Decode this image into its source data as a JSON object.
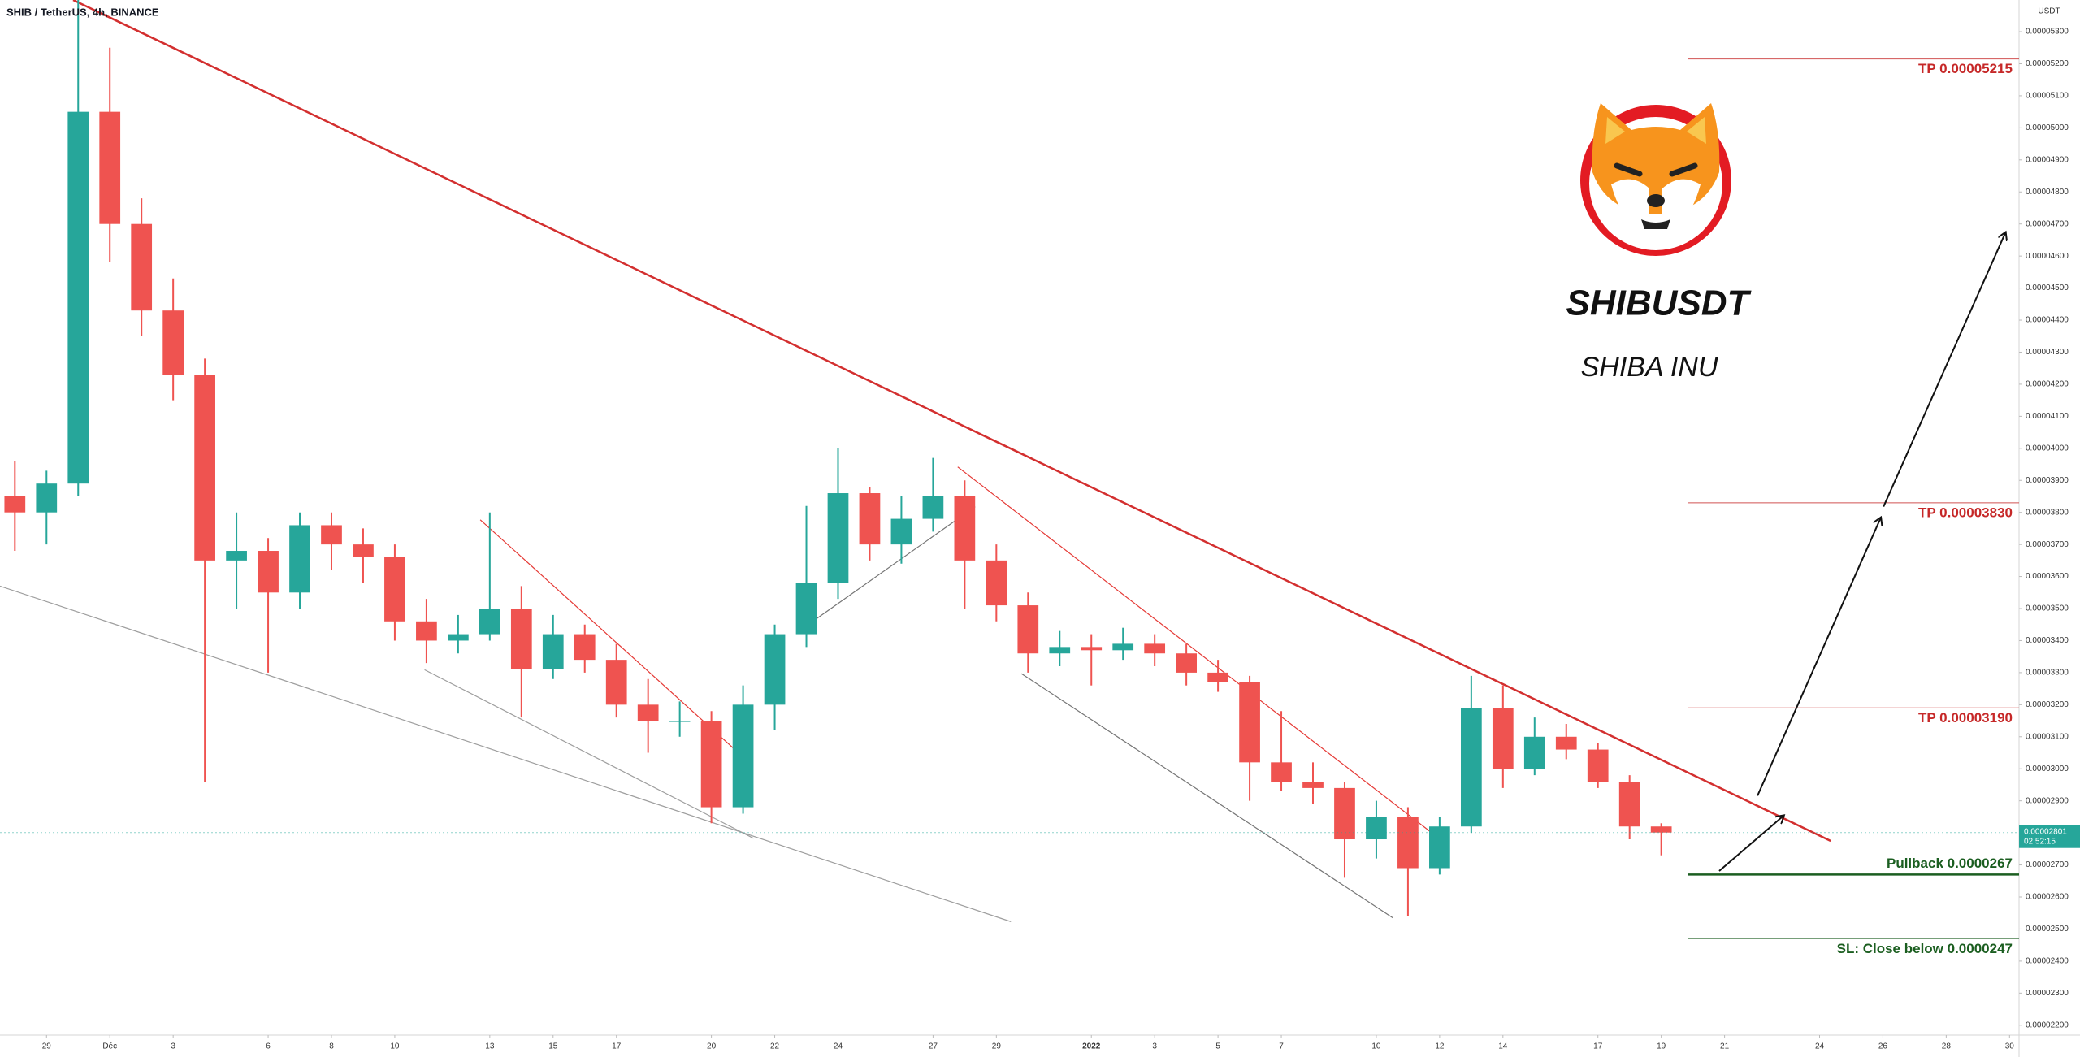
{
  "chart_data": {
    "type": "candlestick",
    "title": "SHIB / TetherUS, 4h, BINANCE",
    "currency": "USDT",
    "heading": "SHIBUSDT",
    "subheading": "SHIBA INU",
    "up_color": "#26a69a",
    "down_color": "#ef5350",
    "grid": false,
    "x": [
      28,
      29,
      30,
      31,
      32,
      33,
      34,
      35,
      36,
      37,
      38,
      39,
      40,
      41,
      42,
      43,
      44,
      45,
      46,
      47,
      48,
      49,
      50,
      51,
      52,
      53,
      54,
      55,
      56,
      57,
      58,
      59,
      60,
      61,
      62,
      63,
      64,
      65,
      66,
      67,
      68,
      69,
      70,
      71,
      72,
      73,
      74,
      75,
      76,
      77,
      78,
      79,
      80
    ],
    "open": [
      3.85e-05,
      3.8e-05,
      3.89e-05,
      5.05e-05,
      4.7e-05,
      4.43e-05,
      4.23e-05,
      3.65e-05,
      3.68e-05,
      3.55e-05,
      3.76e-05,
      3.7e-05,
      3.66e-05,
      3.46e-05,
      3.4e-05,
      3.42e-05,
      3.5e-05,
      3.31e-05,
      3.42e-05,
      3.34e-05,
      3.2e-05,
      3.15e-05,
      3.15e-05,
      2.88e-05,
      3.2e-05,
      3.42e-05,
      3.58e-05,
      3.86e-05,
      3.7e-05,
      3.78e-05,
      3.85e-05,
      3.65e-05,
      3.51e-05,
      3.36e-05,
      3.38e-05,
      3.37e-05,
      3.39e-05,
      3.36e-05,
      3.3e-05,
      3.27e-05,
      3.02e-05,
      2.96e-05,
      2.94e-05,
      2.78e-05,
      2.85e-05,
      2.69e-05,
      2.82e-05,
      3.19e-05,
      3e-05,
      3.1e-05,
      3.06e-05,
      2.96e-05,
      2.82e-05
    ],
    "high": [
      3.96e-05,
      3.93e-05,
      5.4e-05,
      5.25e-05,
      4.78e-05,
      4.53e-05,
      4.28e-05,
      3.8e-05,
      3.72e-05,
      3.8e-05,
      3.8e-05,
      3.75e-05,
      3.7e-05,
      3.53e-05,
      3.48e-05,
      3.8e-05,
      3.57e-05,
      3.48e-05,
      3.45e-05,
      3.39e-05,
      3.28e-05,
      3.21e-05,
      3.18e-05,
      3.26e-05,
      3.45e-05,
      3.82e-05,
      4e-05,
      3.88e-05,
      3.85e-05,
      3.97e-05,
      3.9e-05,
      3.7e-05,
      3.55e-05,
      3.43e-05,
      3.42e-05,
      3.44e-05,
      3.42e-05,
      3.39e-05,
      3.34e-05,
      3.29e-05,
      3.18e-05,
      3.02e-05,
      2.96e-05,
      2.9e-05,
      2.88e-05,
      2.85e-05,
      3.29e-05,
      3.26e-05,
      3.16e-05,
      3.14e-05,
      3.08e-05,
      2.98e-05,
      2.83e-05
    ],
    "low": [
      3.68e-05,
      3.7e-05,
      3.85e-05,
      4.58e-05,
      4.35e-05,
      4.15e-05,
      2.96e-05,
      3.5e-05,
      3.3e-05,
      3.5e-05,
      3.62e-05,
      3.58e-05,
      3.4e-05,
      3.33e-05,
      3.36e-05,
      3.4e-05,
      3.16e-05,
      3.28e-05,
      3.3e-05,
      3.16e-05,
      3.05e-05,
      3.1e-05,
      2.83e-05,
      2.86e-05,
      3.12e-05,
      3.38e-05,
      3.53e-05,
      3.65e-05,
      3.64e-05,
      3.74e-05,
      3.5e-05,
      3.46e-05,
      3.3e-05,
      3.32e-05,
      3.26e-05,
      3.34e-05,
      3.32e-05,
      3.26e-05,
      3.24e-05,
      2.9e-05,
      2.93e-05,
      2.89e-05,
      2.66e-05,
      2.72e-05,
      2.54e-05,
      2.67e-05,
      2.8e-05,
      2.94e-05,
      2.98e-05,
      3.03e-05,
      2.94e-05,
      2.78e-05,
      2.73e-05
    ],
    "close": [
      3.8e-05,
      3.89e-05,
      5.05e-05,
      4.7e-05,
      4.43e-05,
      4.23e-05,
      3.65e-05,
      3.68e-05,
      3.55e-05,
      3.76e-05,
      3.7e-05,
      3.66e-05,
      3.46e-05,
      3.4e-05,
      3.42e-05,
      3.5e-05,
      3.31e-05,
      3.42e-05,
      3.34e-05,
      3.2e-05,
      3.15e-05,
      3.15e-05,
      2.88e-05,
      3.2e-05,
      3.42e-05,
      3.58e-05,
      3.86e-05,
      3.7e-05,
      3.78e-05,
      3.85e-05,
      3.65e-05,
      3.51e-05,
      3.36e-05,
      3.38e-05,
      3.37e-05,
      3.39e-05,
      3.36e-05,
      3.3e-05,
      3.27e-05,
      3.02e-05,
      2.96e-05,
      2.94e-05,
      2.78e-05,
      2.85e-05,
      2.69e-05,
      2.82e-05,
      3.19e-05,
      3e-05,
      3.1e-05,
      3.06e-05,
      2.96e-05,
      2.82e-05,
      2.801e-05
    ],
    "last_price_label": "0.00002801",
    "countdown": "02:52:15",
    "xlim": [
      27.53,
      91.3
    ],
    "ylim": [
      2.169e-05,
      5.399e-05
    ],
    "xticks": [
      29,
      {
        "value": 31,
        "label": "Déc"
      },
      {
        "value": 33,
        "label": "3"
      },
      {
        "value": 36,
        "label": "6"
      },
      {
        "value": 38,
        "label": "8"
      },
      {
        "value": 40,
        "label": "10"
      },
      {
        "value": 43,
        "label": "13"
      },
      {
        "value": 45,
        "label": "15"
      },
      {
        "value": 47,
        "label": "17"
      },
      {
        "value": 50,
        "label": "20"
      },
      {
        "value": 52,
        "label": "22"
      },
      {
        "value": 54,
        "label": "24"
      },
      {
        "value": 57,
        "label": "27"
      },
      {
        "value": 59,
        "label": "29"
      },
      {
        "value": 62,
        "label": "2022"
      },
      {
        "value": 64,
        "label": "3"
      },
      {
        "value": 66,
        "label": "5"
      },
      {
        "value": 68,
        "label": "7"
      },
      {
        "value": 71,
        "label": "10"
      },
      {
        "value": 73,
        "label": "12"
      },
      {
        "value": 75,
        "label": "14"
      },
      {
        "value": 78,
        "label": "17"
      },
      {
        "value": 80,
        "label": "19"
      },
      {
        "value": 82,
        "label": "21"
      },
      {
        "value": 85,
        "label": "24"
      },
      {
        "value": 87,
        "label": "26"
      },
      {
        "value": 89,
        "label": "28"
      },
      {
        "value": 91,
        "label": "30"
      }
    ],
    "yticks": [
      {
        "value": 2.2e-05,
        "label": "0.00002200"
      },
      {
        "value": 2.3e-05,
        "label": "0.00002300"
      },
      {
        "value": 2.4e-05,
        "label": "0.00002400"
      },
      {
        "value": 2.5e-05,
        "label": "0.00002500"
      },
      {
        "value": 2.6e-05,
        "label": "0.00002600"
      },
      {
        "value": 2.7e-05,
        "label": "0.00002700"
      },
      {
        "value": 2.8e-05,
        "label": "0.00002800"
      },
      {
        "value": 2.9e-05,
        "label": "0.00002900"
      },
      {
        "value": 3e-05,
        "label": "0.00003000"
      },
      {
        "value": 3.1e-05,
        "label": "0.00003100"
      },
      {
        "value": 3.2e-05,
        "label": "0.00003200"
      },
      {
        "value": 3.3e-05,
        "label": "0.00003300"
      },
      {
        "value": 3.4e-05,
        "label": "0.00003400"
      },
      {
        "value": 3.5e-05,
        "label": "0.00003500"
      },
      {
        "value": 3.6e-05,
        "label": "0.00003600"
      },
      {
        "value": 3.7e-05,
        "label": "0.00003700"
      },
      {
        "value": 3.8e-05,
        "label": "0.00003800"
      },
      {
        "value": 3.9e-05,
        "label": "0.00003900"
      },
      {
        "value": 4e-05,
        "label": "0.00004000"
      },
      {
        "value": 4.1e-05,
        "label": "0.00004100"
      },
      {
        "value": 4.2e-05,
        "label": "0.00004200"
      },
      {
        "value": 4.3e-05,
        "label": "0.00004300"
      },
      {
        "value": 4.4e-05,
        "label": "0.00004400"
      },
      {
        "value": 4.5e-05,
        "label": "0.00004500"
      },
      {
        "value": 4.6e-05,
        "label": "0.00004600"
      },
      {
        "value": 4.7e-05,
        "label": "0.00004700"
      },
      {
        "value": 4.8e-05,
        "label": "0.00004800"
      },
      {
        "value": 4.9e-05,
        "label": "0.00004900"
      },
      {
        "value": 5e-05,
        "label": "0.00005000"
      },
      {
        "value": 5.1e-05,
        "label": "0.00005100"
      },
      {
        "value": 5.2e-05,
        "label": "0.00005200"
      },
      {
        "value": 5.3e-05,
        "label": "0.00005300"
      }
    ],
    "levels": [
      {
        "value": 5.215e-05,
        "label": "TP 0.00005215",
        "color": "#c62828"
      },
      {
        "value": 3.83e-05,
        "label": "TP 0.00003830",
        "color": "#c62828"
      },
      {
        "value": 3.19e-05,
        "label": "TP 0.00003190",
        "color": "#c62828"
      },
      {
        "value": 2.67e-05,
        "label": "Pullback 0.0000267",
        "color": "#1b5e20"
      },
      {
        "value": 2.47e-05,
        "label": "SL: Close below 0.0000247",
        "color": "#1b5e20"
      }
    ],
    "trendlines": [
      {
        "from": [
          29.84,
          5.399e-05
        ],
        "to": [
          85.35,
          2.775e-05
        ],
        "color": "#d32f2f"
      },
      {
        "from": [
          27.53,
          3.57e-05
        ],
        "to": [
          59.46,
          2.523e-05
        ],
        "color": "#9e9e9e"
      },
      {
        "from": [
          42.7,
          3.777e-05
        ],
        "to": [
          51.2,
          3.019e-05
        ],
        "color": "#e53935"
      },
      {
        "from": [
          40.94,
          3.309e-05
        ],
        "to": [
          51.33,
          2.783e-05
        ],
        "color": "#9e9e9e"
      },
      {
        "from": [
          53.0,
          3.446e-05
        ],
        "to": [
          58.33,
          3.818e-05
        ],
        "color": "#757575"
      },
      {
        "from": [
          57.78,
          3.942e-05
        ],
        "to": [
          72.86,
          2.792e-05
        ],
        "color": "#e53935"
      },
      {
        "from": [
          59.79,
          3.297e-05
        ],
        "to": [
          71.52,
          2.535e-05
        ],
        "color": "#757575"
      }
    ],
    "arrows": [
      {
        "from": [
          81.83,
          2.681e-05
        ],
        "to": [
          83.88,
          2.855e-05
        ],
        "color": "#111111"
      },
      {
        "from": [
          83.04,
          2.916e-05
        ],
        "to": [
          86.94,
          3.785e-05
        ],
        "color": "#111111"
      },
      {
        "from": [
          87.02,
          3.818e-05
        ],
        "to": [
          90.88,
          4.675e-05
        ],
        "color": "#111111"
      }
    ]
  }
}
